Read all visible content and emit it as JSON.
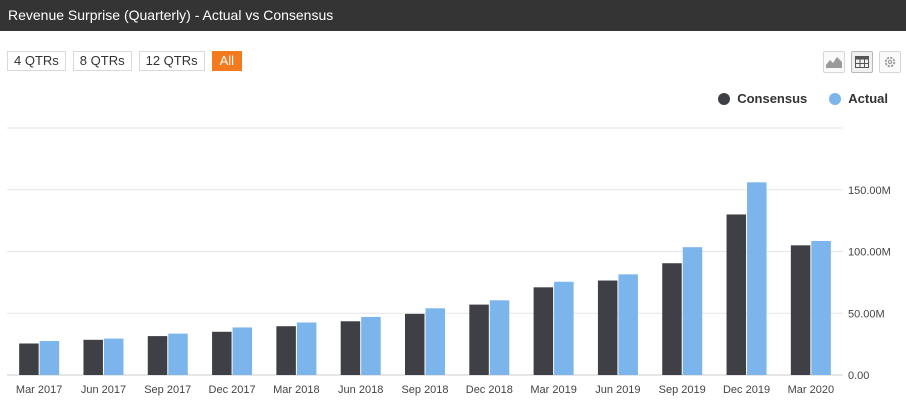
{
  "header": {
    "title": "Revenue Surprise (Quarterly) - Actual vs Consensus"
  },
  "range_buttons": [
    {
      "label": "4 QTRs",
      "active": false
    },
    {
      "label": "8 QTRs",
      "active": false
    },
    {
      "label": "12 QTRs",
      "active": false
    },
    {
      "label": "All",
      "active": true
    }
  ],
  "toolbar": {
    "icons": [
      "area-chart-icon",
      "table-icon",
      "gear-icon"
    ],
    "selected": "table-icon"
  },
  "colors": {
    "consensus": "#3f3f46",
    "actual": "#7cb5ec",
    "accent": "#f47a20",
    "title_bg": "#343434"
  },
  "chart_data": {
    "type": "bar",
    "title": "Revenue Surprise (Quarterly) - Actual vs Consensus",
    "categories": [
      "Mar 2017",
      "Jun 2017",
      "Sep 2017",
      "Dec 2017",
      "Mar 2018",
      "Jun 2018",
      "Sep 2018",
      "Dec 2018",
      "Mar 2019",
      "Jun 2019",
      "Sep 2019",
      "Dec 2019",
      "Mar 2020"
    ],
    "series": [
      {
        "name": "Consensus",
        "color": "#3f3f46",
        "values": [
          25.5,
          28.5,
          31.5,
          35,
          39.5,
          43.5,
          49.5,
          57,
          71,
          76.5,
          90.5,
          130,
          105
        ]
      },
      {
        "name": "Actual",
        "color": "#7cb5ec",
        "values": [
          27.5,
          29.5,
          33.5,
          38.5,
          42.5,
          47,
          54,
          60.5,
          75.5,
          81.5,
          103.5,
          156,
          108.5
        ]
      }
    ],
    "ylim": [
      0,
      200
    ],
    "yticks": [
      {
        "value": 0,
        "label": "0.00"
      },
      {
        "value": 50,
        "label": "50.00M"
      },
      {
        "value": 100,
        "label": "100.00M"
      },
      {
        "value": 150,
        "label": "150.00M"
      }
    ],
    "yaxis_position": "right",
    "grid": true,
    "legend": "top-right"
  }
}
